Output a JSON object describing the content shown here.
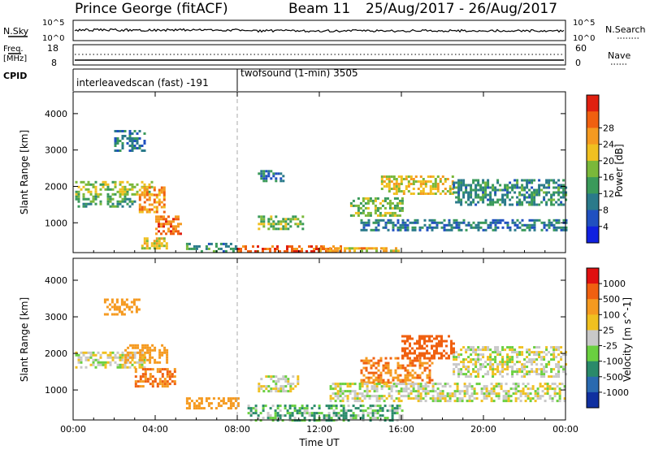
{
  "header": {
    "radar": "Prince George (fitACF)",
    "beam": "Beam 11",
    "date_range": "25/Aug/2017 - 26/Aug/2017"
  },
  "top_panels": {
    "nsky_label": "N.Sky",
    "nsearch_label": "N.Search",
    "nsky_ticks": [
      "10^5",
      "10^0"
    ],
    "freq_label_line1": "Freq.",
    "freq_label_line2": "[MHz]",
    "freq_ticks": [
      "18",
      "8"
    ],
    "nave_label": "Nave",
    "nave_ticks": [
      "60",
      "0"
    ],
    "cpid_label": "CPID",
    "cpid_segments": [
      {
        "name": "interleavedscan (fast) -191",
        "start_hour": 0
      },
      {
        "name": "twofsound (1-min) 3505",
        "start_hour": 8
      }
    ]
  },
  "chart_data": [
    {
      "type": "heatmap",
      "title": "Power",
      "xlabel": "Time UT",
      "ylabel": "Slant Range [km]",
      "xlim_hours": [
        0,
        24
      ],
      "ylim": [
        180,
        4600
      ],
      "x_tick_labels": [
        "00:00",
        "04:00",
        "08:00",
        "12:00",
        "16:00",
        "20:00",
        "00:00"
      ],
      "y_tick_labels": [
        "1000",
        "2000",
        "3000",
        "4000"
      ],
      "y_ticks": [
        1000,
        2000,
        3000,
        4000
      ],
      "colorbar": {
        "label": "Power [dB]",
        "tick_labels": [
          "4",
          "8",
          "12",
          "16",
          "20",
          "24",
          "28"
        ],
        "range": [
          0,
          30
        ],
        "colors": [
          "#1020e0",
          "#2050c0",
          "#2a7a8a",
          "#3a9a5a",
          "#7ab83a",
          "#f0c020",
          "#f59a20",
          "#f06010",
          "#e02010"
        ]
      },
      "regions": [
        {
          "t": [
            0.1,
            3.8
          ],
          "r": [
            1750,
            2150
          ],
          "v": 16
        },
        {
          "t": [
            0.1,
            3.0
          ],
          "r": [
            1450,
            1750
          ],
          "v": 12
        },
        {
          "t": [
            2.0,
            3.5
          ],
          "r": [
            2950,
            3550
          ],
          "v": 8
        },
        {
          "t": [
            3.2,
            4.5
          ],
          "r": [
            1300,
            2000
          ],
          "v": 22
        },
        {
          "t": [
            4.0,
            5.2
          ],
          "r": [
            700,
            1200
          ],
          "v": 24
        },
        {
          "t": [
            3.2,
            4.6
          ],
          "r": [
            300,
            600
          ],
          "v": 18
        },
        {
          "t": [
            5.5,
            8.0
          ],
          "r": [
            200,
            450
          ],
          "v": 10
        },
        {
          "t": [
            8.0,
            13.0
          ],
          "r": [
            200,
            380
          ],
          "v": 26
        },
        {
          "t": [
            12.0,
            16.0
          ],
          "r": [
            200,
            330
          ],
          "v": 20
        },
        {
          "t": [
            9.0,
            11.2
          ],
          "r": [
            800,
            1200
          ],
          "v": 14
        },
        {
          "t": [
            9.0,
            10.2
          ],
          "r": [
            2150,
            2450
          ],
          "v": 8
        },
        {
          "t": [
            13.5,
            16.0
          ],
          "r": [
            1200,
            1700
          ],
          "v": 14
        },
        {
          "t": [
            15.0,
            18.5
          ],
          "r": [
            1800,
            2300
          ],
          "v": 18
        },
        {
          "t": [
            18.5,
            24.0
          ],
          "r": [
            1500,
            2200
          ],
          "v": 10
        },
        {
          "t": [
            14.0,
            24.0
          ],
          "r": [
            800,
            1100
          ],
          "v": 8
        }
      ]
    },
    {
      "type": "heatmap",
      "title": "Velocity",
      "xlabel": "Time UT",
      "ylabel": "Slant Range [km]",
      "xlim_hours": [
        0,
        24
      ],
      "ylim": [
        180,
        4600
      ],
      "x_tick_labels": [
        "00:00",
        "04:00",
        "08:00",
        "12:00",
        "16:00",
        "20:00",
        "00:00"
      ],
      "y_tick_labels": [
        "1000",
        "2000",
        "3000",
        "4000"
      ],
      "y_ticks": [
        1000,
        2000,
        3000,
        4000
      ],
      "colorbar": {
        "label": "Velocity [m s^-1]",
        "tick_labels": [
          "1000",
          "500",
          "100",
          "25",
          "-25",
          "-100",
          "-500",
          "-1000"
        ],
        "colors": [
          "#1030a0",
          "#2a6ab0",
          "#2a8a6a",
          "#6ad040",
          "#c8c8c8",
          "#f0c020",
          "#f59a20",
          "#f06010",
          "#e01010"
        ]
      },
      "regions": [
        {
          "t": [
            0.1,
            3.5
          ],
          "r": [
            1650,
            2050
          ],
          "v": 0
        },
        {
          "t": [
            2.5,
            4.6
          ],
          "r": [
            1750,
            2250
          ],
          "v": -200
        },
        {
          "t": [
            3.0,
            5.0
          ],
          "r": [
            1100,
            1600
          ],
          "v": -300
        },
        {
          "t": [
            1.5,
            3.2
          ],
          "r": [
            3100,
            3500
          ],
          "v": -150
        },
        {
          "t": [
            5.5,
            8.0
          ],
          "r": [
            500,
            800
          ],
          "v": -200
        },
        {
          "t": [
            8.5,
            16.0
          ],
          "r": [
            200,
            600
          ],
          "v": 60
        },
        {
          "t": [
            9.0,
            11.0
          ],
          "r": [
            1000,
            1400
          ],
          "v": 0
        },
        {
          "t": [
            14.0,
            17.5
          ],
          "r": [
            1200,
            1900
          ],
          "v": -300
        },
        {
          "t": [
            16.0,
            18.5
          ],
          "r": [
            1900,
            2500
          ],
          "v": -400
        },
        {
          "t": [
            18.5,
            24.0
          ],
          "r": [
            1400,
            2200
          ],
          "v": 0
        },
        {
          "t": [
            12.5,
            24.0
          ],
          "r": [
            700,
            1200
          ],
          "v": 0
        }
      ]
    }
  ]
}
